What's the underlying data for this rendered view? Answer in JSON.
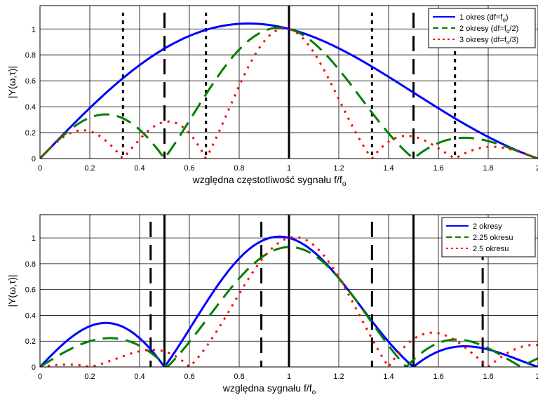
{
  "chart_data": [
    {
      "type": "line",
      "xlim": [
        0,
        2
      ],
      "ylim": [
        0,
        1.18
      ],
      "xticks": [
        "0",
        "0.2",
        "0.4",
        "0.6",
        "0.8",
        "1",
        "1.2",
        "1.4",
        "1.6",
        "1.8",
        "2"
      ],
      "yticks": [
        "0",
        "0.2",
        "0.4",
        "0.6",
        "0.8",
        "1"
      ],
      "xlabel": "względna częstotliwość sygnału f/f",
      "xlabel_sub": "o",
      "ylabel": "|Y(ω,τ)|",
      "grid": true,
      "legend_position": "top-right",
      "legend": [
        {
          "pre": "1 okres (df=f",
          "sub": "o",
          "post": ")",
          "color": "#0000ff",
          "dash": "solid"
        },
        {
          "pre": "2 okresy (df=f",
          "sub": "o",
          "post": "/2)",
          "color": "#007f00",
          "dash": "dashed"
        },
        {
          "pre": "3 okresy (df=f",
          "sub": "o",
          "post": "/3)",
          "color": "#ff0000",
          "dash": "dotted"
        }
      ],
      "series": [
        {
          "name": "1 okres (df=fo)",
          "color": "#0000ff",
          "dash": "solid",
          "periods": 1
        },
        {
          "name": "2 okresy (df=fo/2)",
          "color": "#007f00",
          "dash": "dashed",
          "periods": 2
        },
        {
          "name": "3 okresy (df=fo/3)",
          "color": "#ff0000",
          "dash": "dotted",
          "periods": 3
        }
      ],
      "vlines": [
        {
          "x": 0.3333,
          "style": "dotted"
        },
        {
          "x": 0.5,
          "style": "dashed"
        },
        {
          "x": 0.6667,
          "style": "dotted"
        },
        {
          "x": 1.0,
          "style": "solid"
        },
        {
          "x": 1.3333,
          "style": "dotted"
        },
        {
          "x": 1.5,
          "style": "dashed"
        },
        {
          "x": 1.6667,
          "style": "dotted"
        }
      ]
    },
    {
      "type": "line",
      "xlim": [
        0,
        2
      ],
      "ylim": [
        0,
        1.18
      ],
      "xticks": [
        "0",
        "0.2",
        "0.4",
        "0.6",
        "0.8",
        "1",
        "1.2",
        "1.4",
        "1.6",
        "1.8",
        "2"
      ],
      "yticks": [
        "0",
        "0.2",
        "0.4",
        "0.6",
        "0.8",
        "1"
      ],
      "xlabel": "względna sygnału f/f",
      "xlabel_sub": "o",
      "ylabel": "|Y(ω,τ)|",
      "grid": true,
      "legend_position": "top-right",
      "legend": [
        {
          "pre": "2 okresy",
          "sub": "",
          "post": "",
          "color": "#0000ff",
          "dash": "solid"
        },
        {
          "pre": "2.25 okresu",
          "sub": "",
          "post": "",
          "color": "#007f00",
          "dash": "dashed"
        },
        {
          "pre": "2.5 okresu",
          "sub": "",
          "post": "",
          "color": "#ff0000",
          "dash": "dotted"
        }
      ],
      "series": [
        {
          "name": "2 okresy",
          "color": "#0000ff",
          "dash": "solid",
          "periods": 2
        },
        {
          "name": "2.25 okresu",
          "color": "#007f00",
          "dash": "dashed",
          "periods": 2.25
        },
        {
          "name": "2.5 okresu",
          "color": "#ff0000",
          "dash": "dotted",
          "periods": 2.5
        }
      ],
      "vlines": [
        {
          "x": 0.4444,
          "style": "dashed"
        },
        {
          "x": 0.5,
          "style": "solid"
        },
        {
          "x": 0.8889,
          "style": "dashed"
        },
        {
          "x": 1.0,
          "style": "solid"
        },
        {
          "x": 1.3333,
          "style": "dashed"
        },
        {
          "x": 1.5,
          "style": "solid"
        },
        {
          "x": 1.7778,
          "style": "dashed"
        }
      ]
    }
  ]
}
